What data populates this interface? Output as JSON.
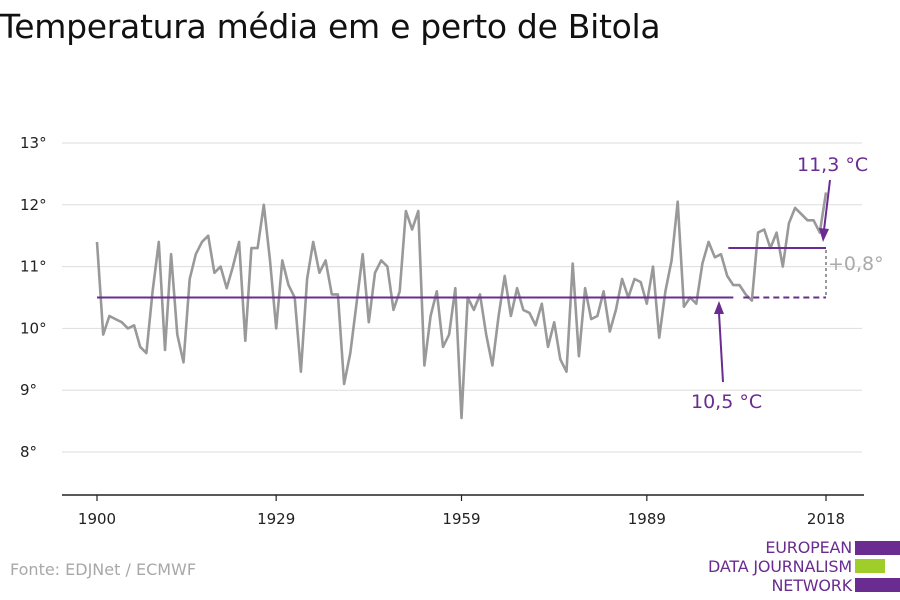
{
  "title": "Temperatura média em e perto de Bitola",
  "source": "Fonte: EDJNet / ECMWF",
  "logo": {
    "lines": [
      "EUROPEAN",
      "DATA JOURNALISM",
      "NETWORK"
    ],
    "colors": [
      "#6a2c91",
      "#9fce2b",
      "#6a2c91"
    ]
  },
  "colors": {
    "series": "#999999",
    "accent": "#6a2c91",
    "delta": "#aaaaaa",
    "grid": "#dddddd",
    "axis": "#222222"
  },
  "chart_data": {
    "type": "line",
    "xlim": [
      1900,
      2018
    ],
    "ylim": [
      7.3,
      13.2
    ],
    "x_ticks": [
      1900,
      1929,
      1959,
      1989,
      2018
    ],
    "y_ticks": [
      8,
      9,
      10,
      11,
      12,
      13
    ],
    "y_tick_labels": [
      "8°",
      "9°",
      "10°",
      "11°",
      "12°",
      "13°"
    ],
    "grid": "horizontal",
    "series": [
      {
        "x": [
          1900,
          1901,
          1902,
          1903,
          1904,
          1905,
          1906,
          1907,
          1908,
          1909,
          1910,
          1911,
          1912,
          1913,
          1914,
          1915,
          1916,
          1917,
          1918,
          1919,
          1920,
          1921,
          1922,
          1923,
          1924,
          1925,
          1926,
          1927,
          1928,
          1929,
          1930,
          1931,
          1932,
          1933,
          1934,
          1935,
          1936,
          1937,
          1938,
          1939,
          1940,
          1941,
          1942,
          1943,
          1944,
          1945,
          1946,
          1947,
          1948,
          1949,
          1950,
          1951,
          1952,
          1953,
          1954,
          1955,
          1956,
          1957,
          1958,
          1959,
          1960,
          1961,
          1962,
          1963,
          1964,
          1965,
          1966,
          1967,
          1968,
          1969,
          1970,
          1971,
          1972,
          1973,
          1974,
          1975,
          1976,
          1977,
          1978,
          1979,
          1980,
          1981,
          1982,
          1983,
          1984,
          1985,
          1986,
          1987,
          1988,
          1989,
          1990,
          1991,
          1992,
          1993,
          1994,
          1995,
          1996,
          1997,
          1998,
          1999,
          2000,
          2001,
          2002,
          2003,
          2004,
          2005,
          2006,
          2007,
          2008,
          2009,
          2010,
          2011,
          2012,
          2013,
          2014,
          2015,
          2016,
          2017,
          2018
        ],
        "values": [
          11.4,
          9.9,
          10.2,
          10.15,
          10.1,
          10.0,
          10.05,
          9.7,
          9.6,
          10.6,
          11.4,
          9.65,
          11.2,
          9.9,
          9.45,
          10.8,
          11.2,
          11.4,
          11.5,
          10.9,
          11.0,
          10.65,
          11.0,
          11.4,
          9.8,
          11.3,
          11.3,
          12.0,
          11.1,
          10.0,
          11.1,
          10.7,
          10.5,
          9.3,
          10.8,
          11.4,
          10.9,
          11.1,
          10.55,
          10.55,
          9.1,
          9.6,
          10.4,
          11.2,
          10.1,
          10.9,
          11.1,
          11.0,
          10.3,
          10.6,
          11.9,
          11.6,
          11.9,
          9.4,
          10.2,
          10.6,
          9.7,
          9.9,
          10.65,
          8.55,
          10.5,
          10.3,
          10.55,
          9.9,
          9.4,
          10.2,
          10.85,
          10.2,
          10.65,
          10.3,
          10.25,
          10.05,
          10.4,
          9.7,
          10.1,
          9.5,
          9.3,
          11.05,
          9.55,
          10.65,
          10.15,
          10.2,
          10.6,
          9.95,
          10.3,
          10.8,
          10.5,
          10.8,
          10.75,
          10.4,
          11.0,
          9.85,
          10.6,
          11.1,
          12.05,
          10.35,
          10.5,
          10.4,
          11.05,
          11.4,
          11.15,
          11.2,
          10.85,
          10.7,
          10.7,
          10.55,
          10.45,
          11.55,
          11.6,
          11.3,
          11.55,
          11.0,
          11.7,
          11.95,
          11.85,
          11.75,
          11.75,
          11.55,
          12.2
        ]
      }
    ],
    "baseline": {
      "value": 10.5,
      "label": "10,5 °C",
      "from": 1900,
      "to": 2003
    },
    "recent": {
      "value": 11.3,
      "label": "11,3 °C",
      "from": 2003,
      "to": 2018
    },
    "delta_label": "+0,8°"
  }
}
